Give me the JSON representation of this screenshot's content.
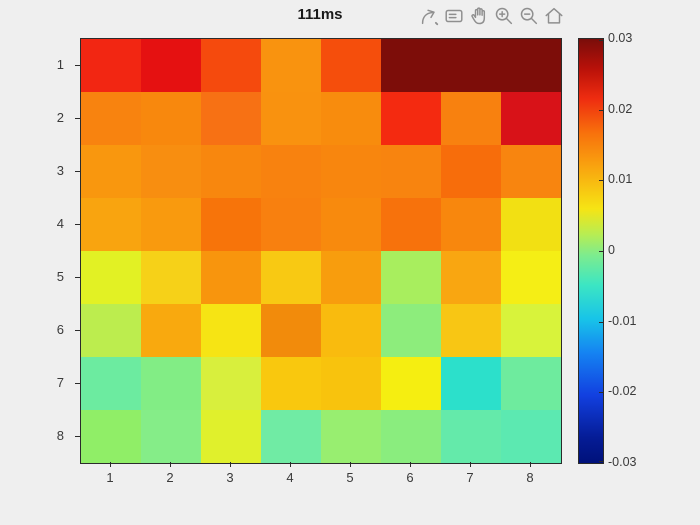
{
  "title": "111ms",
  "toolbar": {
    "icons": [
      "export-icon",
      "edit-plot-icon",
      "pan-icon",
      "zoom-in-icon",
      "zoom-out-icon",
      "home-icon"
    ]
  },
  "colors": {
    "background": "#efefef",
    "axis_line": "#2b2b2b",
    "tick_label": "#3a3a3a",
    "title_text": "#1a1a1a",
    "toolbar_icon": "#8f8f8f"
  },
  "chart_data": {
    "type": "heatmap",
    "title": "111ms",
    "xlabel": "",
    "ylabel": "",
    "x_ticks": [
      "1",
      "2",
      "3",
      "4",
      "5",
      "6",
      "7",
      "8"
    ],
    "y_ticks": [
      "1",
      "2",
      "3",
      "4",
      "5",
      "6",
      "7",
      "8"
    ],
    "grid": false,
    "colorbar": {
      "position": "right",
      "colormap": "jet",
      "min": -0.03,
      "max": 0.03,
      "ticks": [
        "0.03",
        "0.02",
        "0.01",
        "0",
        "-0.01",
        "-0.02",
        "-0.03"
      ]
    },
    "values": [
      [
        0.021,
        0.023,
        0.019,
        0.014,
        0.019,
        0.03,
        0.03,
        0.03
      ],
      [
        0.015,
        0.015,
        0.017,
        0.014,
        0.014,
        0.022,
        0.015,
        0.024
      ],
      [
        0.013,
        0.014,
        0.015,
        0.015,
        0.015,
        0.015,
        0.018,
        0.015
      ],
      [
        0.012,
        0.013,
        0.018,
        0.015,
        0.014,
        0.017,
        0.015,
        0.007
      ],
      [
        0.006,
        0.009,
        0.013,
        0.01,
        0.012,
        0.002,
        0.011,
        0.008
      ],
      [
        0.004,
        0.011,
        0.008,
        0.013,
        0.01,
        0.001,
        0.009,
        0.005
      ],
      [
        -0.001,
        0.001,
        0.005,
        0.01,
        0.01,
        0.008,
        -0.006,
        -0.001
      ],
      [
        0.002,
        0.001,
        0.006,
        -0.001,
        0.002,
        0.001,
        -0.002,
        -0.003
      ]
    ],
    "cell_colors": [
      [
        "#f22612",
        "#e51111",
        "#f54a0d",
        "#f9930f",
        "#f54e0c",
        "#7d0d09",
        "#7d0d09",
        "#7d0d09"
      ],
      [
        "#f8830f",
        "#f8880d",
        "#f77114",
        "#f9920f",
        "#f88c0d",
        "#f42a10",
        "#f8810f",
        "#d81218"
      ],
      [
        "#f9970e",
        "#f88e10",
        "#f8870e",
        "#f8820f",
        "#f8860e",
        "#f8840f",
        "#f76d0b",
        "#f8850f"
      ],
      [
        "#f9a40f",
        "#f99a0e",
        "#f7740a",
        "#f8800f",
        "#f88a0d",
        "#f7720c",
        "#f8870d",
        "#f2e013"
      ],
      [
        "#e2f124",
        "#f6d118",
        "#f8950d",
        "#f8c913",
        "#f89d0d",
        "#a8ee5e",
        "#f9a611",
        "#f5ee15"
      ],
      [
        "#bced4e",
        "#f9a90e",
        "#f6e414",
        "#f28b0b",
        "#f9bb0e",
        "#8ded7c",
        "#f8c614",
        "#d8f33b"
      ],
      [
        "#6ceba0",
        "#82ed85",
        "#d8ef3d",
        "#f9c80e",
        "#f8c30d",
        "#f5ee11",
        "#2ce0cb",
        "#6eeb9e"
      ],
      [
        "#90ee67",
        "#85ed88",
        "#e0f02c",
        "#70eba4",
        "#98ee70",
        "#8aed7e",
        "#64eaaa",
        "#5ce9b1"
      ]
    ]
  }
}
